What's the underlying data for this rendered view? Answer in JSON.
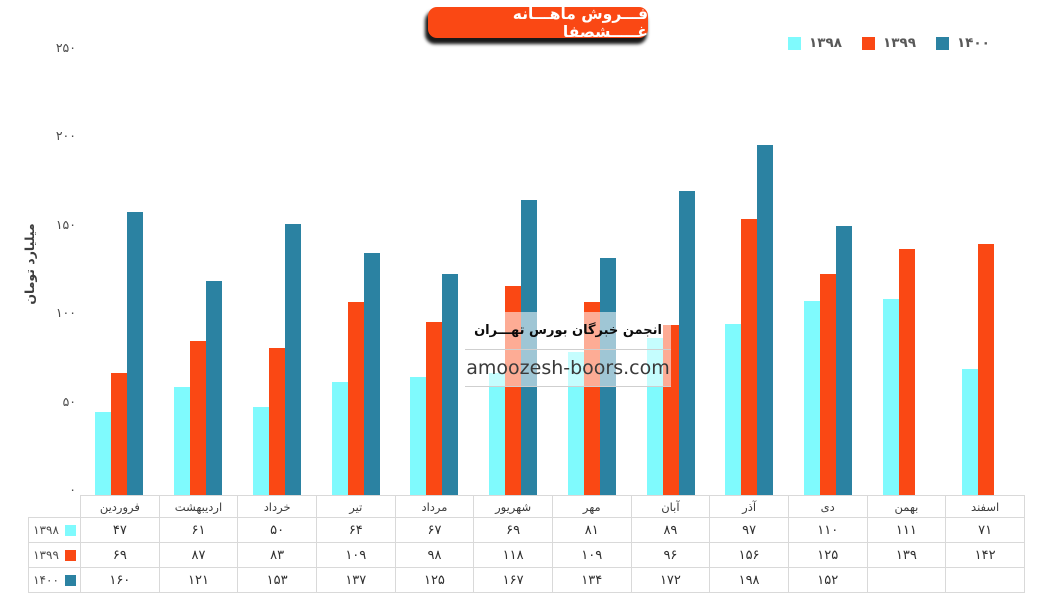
{
  "title_badge": "فـــروش ماهـــانه غـــــشصفا",
  "colors": {
    "title_bg": "#FA4814",
    "title_text": "#FFFFFF",
    "series_1398": "#7FFAFD",
    "series_1399": "#FA4814",
    "series_1400": "#2B82A2",
    "axis_text": "#4A4A4A",
    "table_border": "#D9D9D9"
  },
  "legend": {
    "items": [
      {
        "label": "۱۳۹۸",
        "color": "#7FFAFD"
      },
      {
        "label": "۱۳۹۹",
        "color": "#FA4814"
      },
      {
        "label": "۱۴۰۰",
        "color": "#2B82A2"
      }
    ]
  },
  "watermark": {
    "line1": "انجمن خبرگان بورس تهـــران",
    "line2": "amoozesh-boors.com"
  },
  "chart_data": {
    "type": "bar",
    "title": "فـــروش ماهـــانه غـــــشصفا",
    "ylabel": "میلیارد تومان",
    "ylim": [
      0,
      250
    ],
    "yticks": [
      0,
      50,
      100,
      150,
      200,
      250
    ],
    "grid": false,
    "legend_position": "top-right",
    "categories": [
      "فروردین",
      "اردیبهشت",
      "خرداد",
      "تیر",
      "مرداد",
      "شهریور",
      "مهر",
      "آبان",
      "آذر",
      "دی",
      "بهمن",
      "اسفند"
    ],
    "series": [
      {
        "name": "۱۳۹۸",
        "year": "1398",
        "color": "#7FFAFD",
        "values": [
          47,
          61,
          50,
          64,
          67,
          69,
          81,
          89,
          97,
          110,
          111,
          71
        ]
      },
      {
        "name": "۱۳۹۹",
        "year": "1399",
        "color": "#FA4814",
        "values": [
          69,
          87,
          83,
          109,
          98,
          118,
          109,
          96,
          156,
          125,
          139,
          142
        ]
      },
      {
        "name": "۱۴۰۰",
        "year": "1400",
        "color": "#2B82A2",
        "values": [
          160,
          121,
          153,
          137,
          125,
          167,
          134,
          172,
          198,
          152,
          null,
          null
        ]
      }
    ]
  }
}
